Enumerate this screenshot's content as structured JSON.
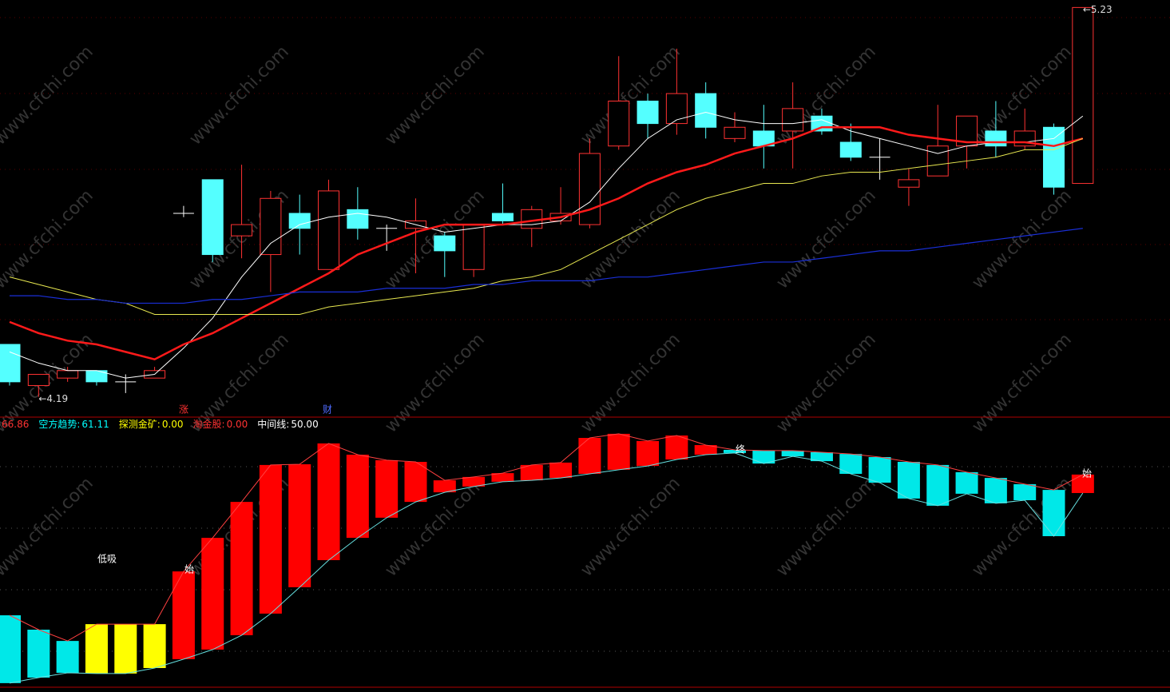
{
  "chart_data": [
    {
      "type": "candlestick",
      "open": [
        4.33,
        4.22,
        4.24,
        4.26,
        4.23,
        4.24,
        4.68,
        4.77,
        4.62,
        4.57,
        4.68,
        4.53,
        4.69,
        4.64,
        4.64,
        4.62,
        4.53,
        4.68,
        4.64,
        4.66,
        4.65,
        4.86,
        4.98,
        4.92,
        5.0,
        4.88,
        4.9,
        4.9,
        4.94,
        4.87,
        4.83,
        4.75,
        4.78,
        4.86,
        4.9,
        4.86,
        4.91,
        4.76
      ],
      "high": [
        4.33,
        4.25,
        4.27,
        4.26,
        4.25,
        4.27,
        4.7,
        4.77,
        4.81,
        4.74,
        4.73,
        4.77,
        4.75,
        4.65,
        4.72,
        4.63,
        4.65,
        4.76,
        4.7,
        4.75,
        4.88,
        5.1,
        5.0,
        5.12,
        5.03,
        4.95,
        4.97,
        5.03,
        4.96,
        4.92,
        4.88,
        4.8,
        4.97,
        4.94,
        4.98,
        4.96,
        4.92,
        5.23
      ],
      "low": [
        4.22,
        4.19,
        4.23,
        4.22,
        4.2,
        4.24,
        4.67,
        4.55,
        4.56,
        4.47,
        4.57,
        4.53,
        4.61,
        4.58,
        4.52,
        4.51,
        4.51,
        4.65,
        4.59,
        4.65,
        4.64,
        4.85,
        4.88,
        4.89,
        4.88,
        4.87,
        4.8,
        4.8,
        4.89,
        4.82,
        4.77,
        4.7,
        4.78,
        4.8,
        4.83,
        4.85,
        4.73,
        4.76
      ],
      "close": [
        4.23,
        4.25,
        4.26,
        4.23,
        4.23,
        4.26,
        4.68,
        4.57,
        4.65,
        4.72,
        4.64,
        4.74,
        4.64,
        4.64,
        4.66,
        4.58,
        4.65,
        4.66,
        4.69,
        4.68,
        4.84,
        4.98,
        4.92,
        5.0,
        4.91,
        4.91,
        4.86,
        4.96,
        4.9,
        4.83,
        4.83,
        4.77,
        4.86,
        4.94,
        4.86,
        4.9,
        4.75,
        5.23
      ],
      "up_color": "#ff3232",
      "down_color": "#54ffff",
      "flat_color": "#ffffff",
      "ylim": [
        4.14,
        5.25
      ],
      "overlays": [
        {
          "color": "#ffffff",
          "width": 1,
          "values": [
            4.31,
            4.28,
            4.26,
            4.26,
            4.24,
            4.25,
            4.32,
            4.4,
            4.51,
            4.6,
            4.65,
            4.67,
            4.68,
            4.67,
            4.65,
            4.63,
            4.64,
            4.65,
            4.65,
            4.66,
            4.71,
            4.8,
            4.88,
            4.93,
            4.95,
            4.93,
            4.92,
            4.92,
            4.93,
            4.9,
            4.88,
            4.86,
            4.84,
            4.86,
            4.87,
            4.87,
            4.88,
            4.94
          ]
        },
        {
          "color": "#ff1a1a",
          "width": 2.5,
          "values": [
            4.39,
            4.36,
            4.34,
            4.33,
            4.31,
            4.29,
            4.33,
            4.36,
            4.4,
            4.44,
            4.48,
            4.52,
            4.57,
            4.6,
            4.63,
            4.65,
            4.65,
            4.65,
            4.66,
            4.67,
            4.69,
            4.72,
            4.76,
            4.79,
            4.81,
            4.84,
            4.86,
            4.88,
            4.91,
            4.91,
            4.91,
            4.89,
            4.88,
            4.87,
            4.87,
            4.87,
            4.86,
            4.88
          ]
        },
        {
          "color": "#e8e850",
          "width": 1,
          "values": [
            4.51,
            4.49,
            4.47,
            4.45,
            4.44,
            4.41,
            4.41,
            4.41,
            4.41,
            4.41,
            4.41,
            4.43,
            4.44,
            4.45,
            4.46,
            4.47,
            4.48,
            4.5,
            4.51,
            4.53,
            4.57,
            4.61,
            4.65,
            4.69,
            4.72,
            4.74,
            4.76,
            4.76,
            4.78,
            4.79,
            4.79,
            4.8,
            4.81,
            4.82,
            4.83,
            4.85,
            4.85,
            4.88
          ]
        },
        {
          "color": "#1a2fd8",
          "width": 1.2,
          "values": [
            4.46,
            4.46,
            4.45,
            4.45,
            4.44,
            4.44,
            4.44,
            4.45,
            4.45,
            4.46,
            4.47,
            4.47,
            4.47,
            4.48,
            4.48,
            4.48,
            4.49,
            4.49,
            4.5,
            4.5,
            4.5,
            4.51,
            4.51,
            4.52,
            4.53,
            4.54,
            4.55,
            4.55,
            4.56,
            4.57,
            4.58,
            4.58,
            4.59,
            4.6,
            4.61,
            4.62,
            4.63,
            4.64
          ]
        }
      ],
      "annotations": [
        {
          "value": 4.19,
          "label": "←4.19",
          "kind": "low"
        },
        {
          "value": 5.23,
          "label": "←5.23",
          "kind": "high"
        }
      ],
      "markers": [
        {
          "text": "涨",
          "color": "#ff3232"
        },
        {
          "text": "财",
          "color": "#4f6bff"
        }
      ],
      "watermark": "www.cfchi.com"
    },
    {
      "type": "floating-bar",
      "header": [
        {
          "value": 66.86,
          "color": "#ff3232"
        },
        {
          "name": "空方趋势:",
          "value": 61.11,
          "color": "#00ffff"
        },
        {
          "name": "探测金矿:",
          "value": 0,
          "value_label": "0.00",
          "color": "#ffff00"
        },
        {
          "name": "淘金股:",
          "value": 0,
          "value_label": "0.00",
          "color": "#ff3232"
        },
        {
          "name": "中间线:",
          "value": 50,
          "value_label": "50.00",
          "color": "#ffffff"
        }
      ],
      "upper": [
        30.0,
        24.0,
        19.3,
        26.3,
        26.3,
        26.3,
        48.3,
        62.3,
        77.3,
        92.7,
        93.0,
        101.7,
        97.0,
        94.7,
        94.0,
        86.3,
        87.7,
        89.3,
        92.7,
        93.7,
        104.0,
        105.7,
        102.7,
        105.0,
        101.0,
        99.0,
        98.7,
        98.7,
        98.0,
        97.3,
        96.0,
        94.0,
        92.7,
        89.7,
        87.3,
        84.7,
        82.3,
        88.7
      ],
      "lower": [
        1.7,
        4.0,
        6.0,
        5.7,
        5.7,
        8.0,
        11.7,
        15.7,
        21.7,
        30.7,
        41.7,
        53.0,
        62.3,
        70.7,
        77.3,
        81.3,
        83.7,
        85.7,
        86.3,
        87.3,
        89.0,
        90.7,
        92.3,
        95.0,
        97.0,
        97.7,
        93.3,
        96.3,
        94.3,
        89.0,
        85.3,
        78.7,
        75.7,
        80.7,
        76.7,
        78.0,
        63.0,
        81.0
      ],
      "colors": [
        "#00e8e8",
        "#00e8e8",
        "#00e8e8",
        "#ffff00",
        "#ffff00",
        "#ffff00",
        "#ff0000",
        "#ff0000",
        "#ff0000",
        "#ff0000",
        "#ff0000",
        "#ff0000",
        "#ff0000",
        "#ff0000",
        "#ff0000",
        "#ff0000",
        "#ff0000",
        "#ff0000",
        "#ff0000",
        "#ff0000",
        "#ff0000",
        "#ff0000",
        "#ff0000",
        "#ff0000",
        "#ff0000",
        "#00e8e8",
        "#00e8e8",
        "#00e8e8",
        "#00e8e8",
        "#00e8e8",
        "#00e8e8",
        "#00e8e8",
        "#00e8e8",
        "#00e8e8",
        "#00e8e8",
        "#00e8e8",
        "#00e8e8",
        "#ff0000"
      ],
      "ylim": [
        0,
        110
      ],
      "labels": [
        "低吸",
        "始",
        "终",
        "始"
      ]
    }
  ]
}
